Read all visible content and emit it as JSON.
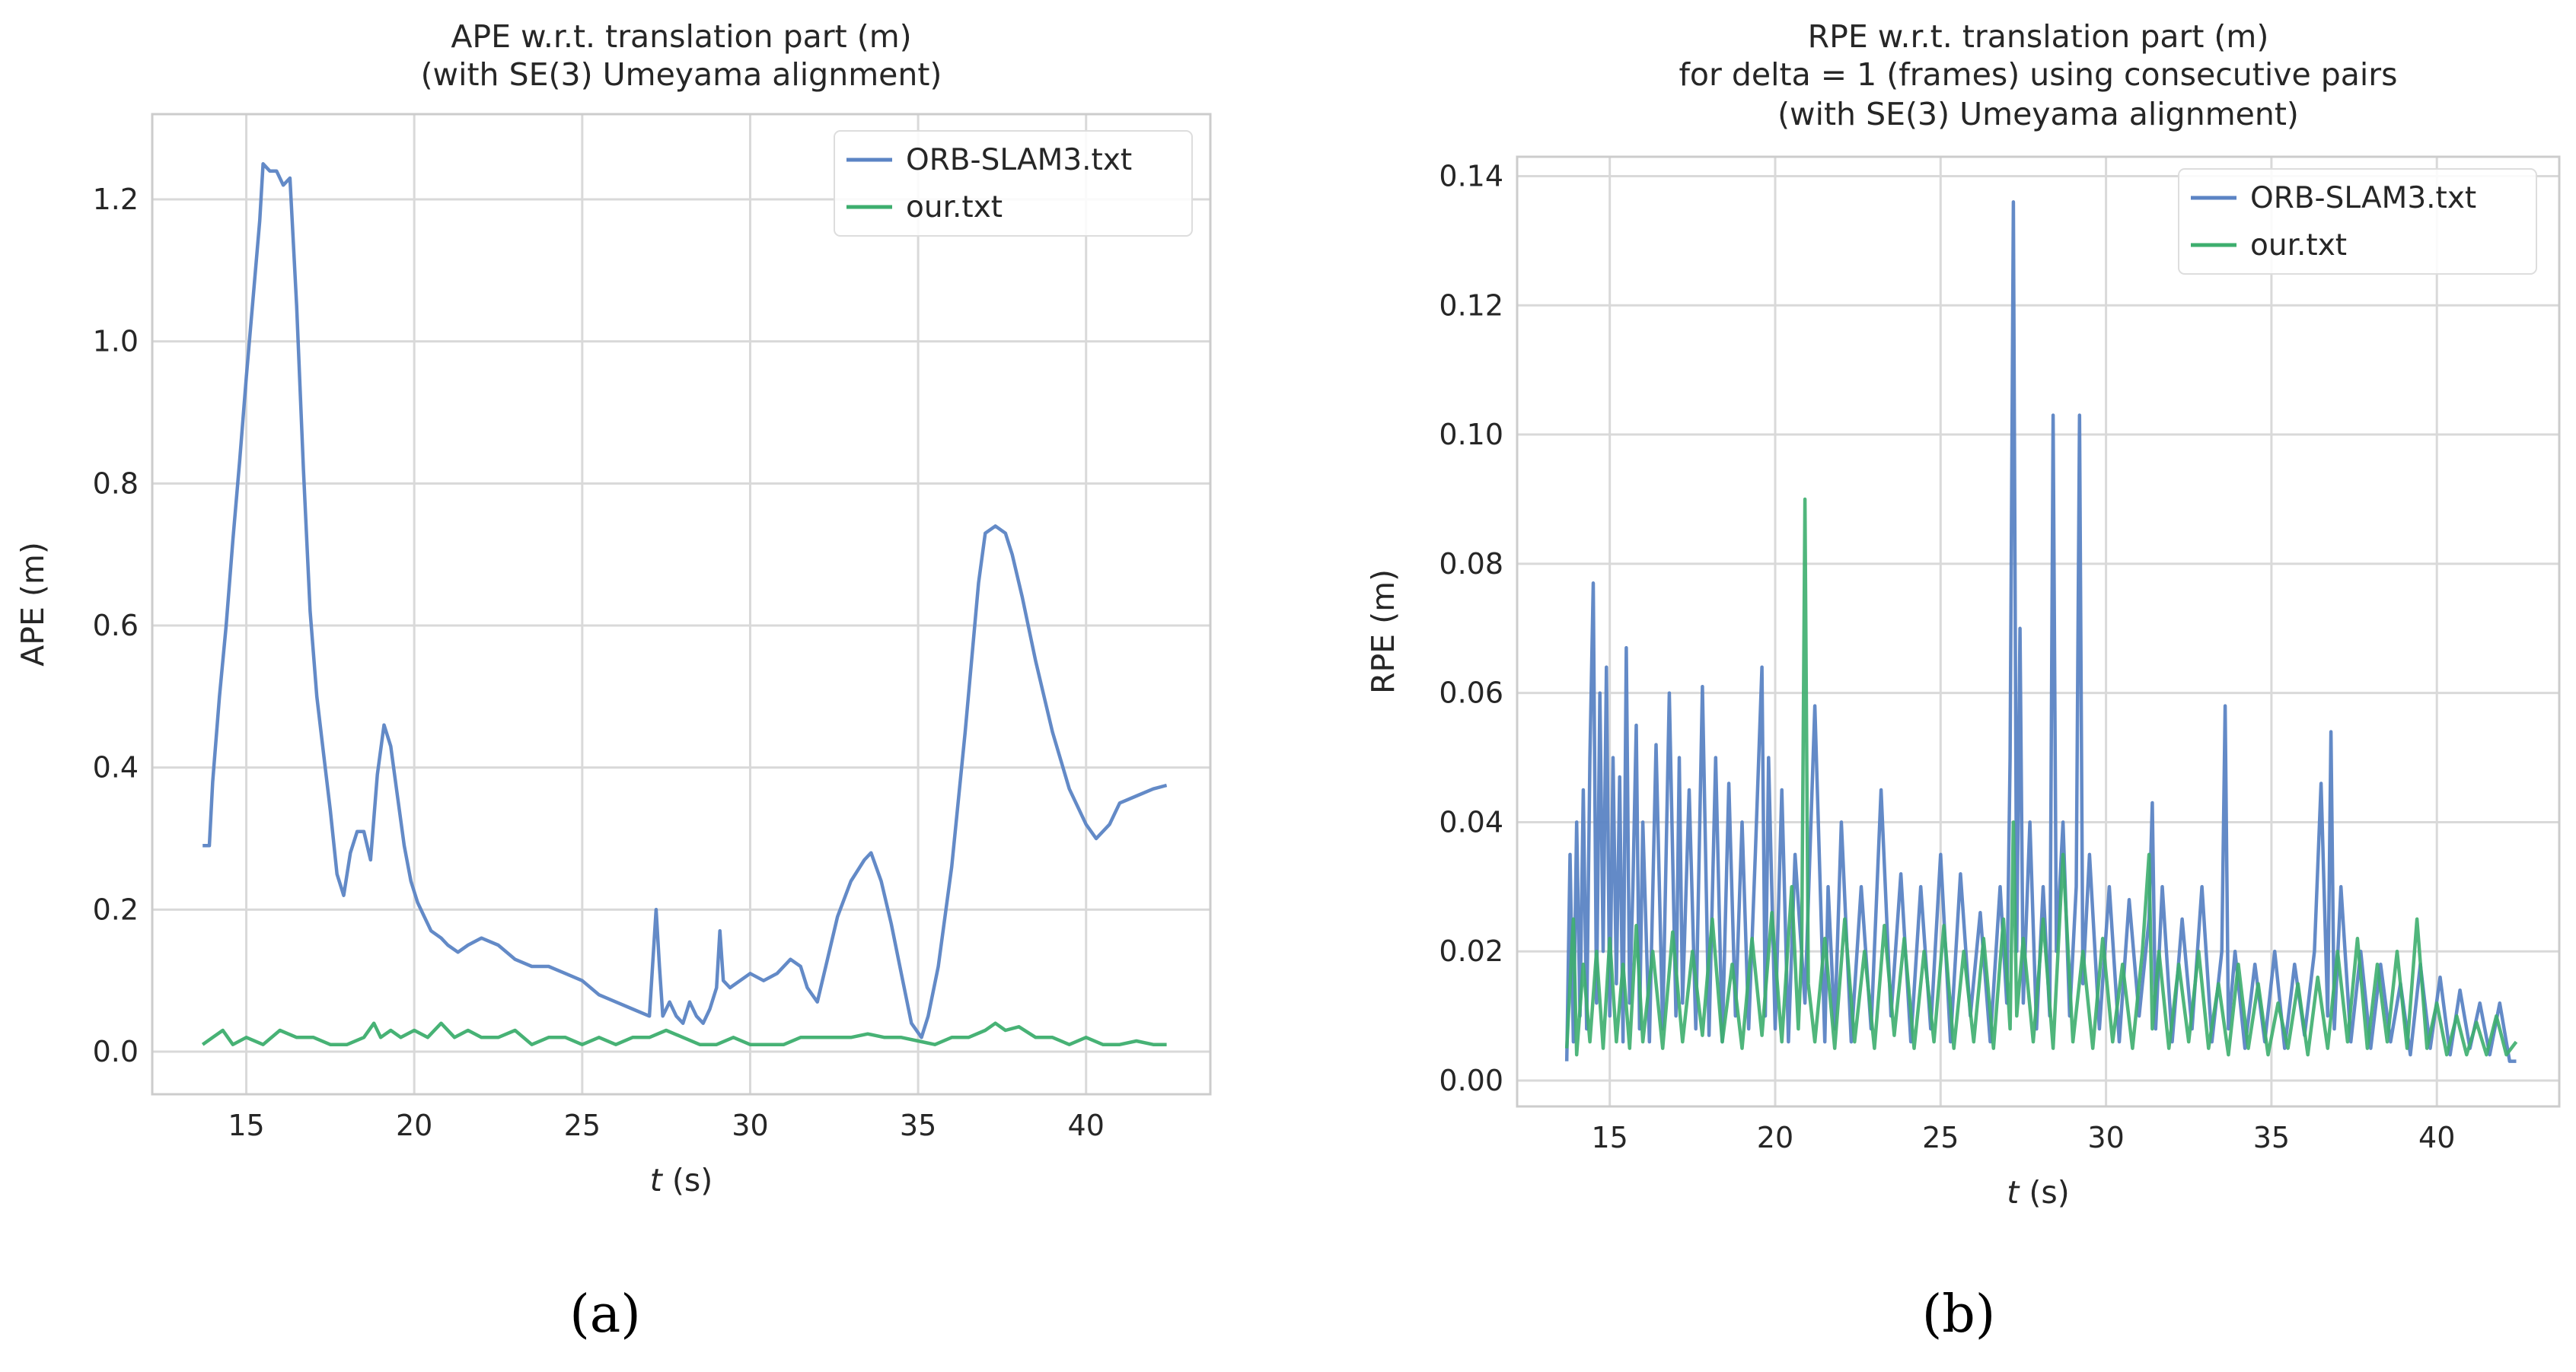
{
  "colors": {
    "orb": "#5b84c4",
    "our": "#3dae6e"
  },
  "chart_data": [
    {
      "type": "line",
      "panel_label": "(a)",
      "title": [
        "APE w.r.t. translation part (m)",
        "(with SE(3) Umeyama alignment)"
      ],
      "xlabel_italic": "t",
      "xlabel_rest": " (s)",
      "ylabel": "APE (m)",
      "xlim": [
        12.2,
        43.7
      ],
      "ylim": [
        -0.06,
        1.32
      ],
      "xticks": [
        15,
        20,
        25,
        30,
        35,
        40
      ],
      "yticks": [
        0.0,
        0.2,
        0.4,
        0.6,
        0.8,
        1.0,
        1.2
      ],
      "ytick_labels": [
        "0.0",
        "0.2",
        "0.4",
        "0.6",
        "0.8",
        "1.0",
        "1.2"
      ],
      "legend": [
        "ORB-SLAM3.txt",
        "our.txt"
      ],
      "series": [
        {
          "name": "ORB-SLAM3.txt",
          "x": [
            13.7,
            13.9,
            14.0,
            14.2,
            14.4,
            14.6,
            14.8,
            15.0,
            15.2,
            15.4,
            15.5,
            15.7,
            15.9,
            16.1,
            16.3,
            16.5,
            16.7,
            16.9,
            17.1,
            17.3,
            17.5,
            17.7,
            17.9,
            18.1,
            18.3,
            18.5,
            18.7,
            18.9,
            19.1,
            19.3,
            19.5,
            19.7,
            19.9,
            20.1,
            20.3,
            20.5,
            20.8,
            21.0,
            21.3,
            21.6,
            22.0,
            22.5,
            23.0,
            23.5,
            24.0,
            24.5,
            25.0,
            25.5,
            26.0,
            26.5,
            27.0,
            27.2,
            27.3,
            27.4,
            27.6,
            27.8,
            28.0,
            28.2,
            28.4,
            28.6,
            28.8,
            29.0,
            29.1,
            29.2,
            29.4,
            29.7,
            30.0,
            30.4,
            30.8,
            31.2,
            31.5,
            31.7,
            32.0,
            32.3,
            32.6,
            33.0,
            33.4,
            33.6,
            33.9,
            34.2,
            34.5,
            34.8,
            35.1,
            35.3,
            35.6,
            36.0,
            36.4,
            36.8,
            37.0,
            37.3,
            37.6,
            37.8,
            38.1,
            38.5,
            39.0,
            39.5,
            40.0,
            40.3,
            40.7,
            41.0,
            41.5,
            42.0,
            42.4
          ],
          "y": [
            0.29,
            0.29,
            0.38,
            0.5,
            0.6,
            0.72,
            0.83,
            0.95,
            1.06,
            1.17,
            1.25,
            1.24,
            1.24,
            1.22,
            1.23,
            1.05,
            0.82,
            0.62,
            0.5,
            0.42,
            0.34,
            0.25,
            0.22,
            0.28,
            0.31,
            0.31,
            0.27,
            0.39,
            0.46,
            0.43,
            0.36,
            0.29,
            0.24,
            0.21,
            0.19,
            0.17,
            0.16,
            0.15,
            0.14,
            0.15,
            0.16,
            0.15,
            0.13,
            0.12,
            0.12,
            0.11,
            0.1,
            0.08,
            0.07,
            0.06,
            0.05,
            0.2,
            0.12,
            0.05,
            0.07,
            0.05,
            0.04,
            0.07,
            0.05,
            0.04,
            0.06,
            0.09,
            0.17,
            0.1,
            0.09,
            0.1,
            0.11,
            0.1,
            0.11,
            0.13,
            0.12,
            0.09,
            0.07,
            0.13,
            0.19,
            0.24,
            0.27,
            0.28,
            0.24,
            0.18,
            0.11,
            0.04,
            0.02,
            0.05,
            0.12,
            0.26,
            0.45,
            0.66,
            0.73,
            0.74,
            0.73,
            0.7,
            0.64,
            0.55,
            0.45,
            0.37,
            0.32,
            0.3,
            0.32,
            0.35,
            0.36,
            0.37,
            0.375
          ]
        },
        {
          "name": "our.txt",
          "x": [
            13.7,
            14.0,
            14.3,
            14.6,
            15.0,
            15.5,
            16.0,
            16.5,
            17.0,
            17.5,
            18.0,
            18.5,
            18.8,
            19.0,
            19.3,
            19.6,
            20.0,
            20.4,
            20.8,
            21.2,
            21.6,
            22.0,
            22.5,
            23.0,
            23.5,
            24.0,
            24.5,
            25.0,
            25.5,
            26.0,
            26.5,
            27.0,
            27.5,
            28.0,
            28.5,
            29.0,
            29.5,
            30.0,
            30.5,
            31.0,
            31.5,
            32.0,
            32.5,
            33.0,
            33.5,
            34.0,
            34.5,
            35.0,
            35.5,
            36.0,
            36.5,
            37.0,
            37.3,
            37.6,
            38.0,
            38.5,
            39.0,
            39.5,
            40.0,
            40.5,
            41.0,
            41.5,
            42.0,
            42.4
          ],
          "y": [
            0.01,
            0.02,
            0.03,
            0.01,
            0.02,
            0.01,
            0.03,
            0.02,
            0.02,
            0.01,
            0.01,
            0.02,
            0.04,
            0.02,
            0.03,
            0.02,
            0.03,
            0.02,
            0.04,
            0.02,
            0.03,
            0.02,
            0.02,
            0.03,
            0.01,
            0.02,
            0.02,
            0.01,
            0.02,
            0.01,
            0.02,
            0.02,
            0.03,
            0.02,
            0.01,
            0.01,
            0.02,
            0.01,
            0.01,
            0.01,
            0.02,
            0.02,
            0.02,
            0.02,
            0.025,
            0.02,
            0.02,
            0.015,
            0.01,
            0.02,
            0.02,
            0.03,
            0.04,
            0.03,
            0.035,
            0.02,
            0.02,
            0.01,
            0.02,
            0.01,
            0.01,
            0.015,
            0.01,
            0.01
          ]
        }
      ]
    },
    {
      "type": "line",
      "panel_label": "(b)",
      "title": [
        "RPE w.r.t. translation part (m)",
        "for delta = 1 (frames) using consecutive pairs",
        "(with SE(3) Umeyama alignment)"
      ],
      "xlabel_italic": "t",
      "xlabel_rest": " (s)",
      "ylabel": "RPE (m)",
      "xlim": [
        12.2,
        43.7
      ],
      "ylim": [
        -0.004,
        0.143
      ],
      "xticks": [
        15,
        20,
        25,
        30,
        35,
        40
      ],
      "yticks": [
        0.0,
        0.02,
        0.04,
        0.06,
        0.08,
        0.1,
        0.12,
        0.14
      ],
      "ytick_labels": [
        "0.00",
        "0.02",
        "0.04",
        "0.06",
        "0.08",
        "0.10",
        "0.12",
        "0.14"
      ],
      "legend": [
        "ORB-SLAM3.txt",
        "our.txt"
      ],
      "series": [
        {
          "name": "ORB-SLAM3.txt",
          "x": [
            13.7,
            13.8,
            13.9,
            14.0,
            14.1,
            14.2,
            14.3,
            14.4,
            14.5,
            14.6,
            14.7,
            14.8,
            14.9,
            15.0,
            15.1,
            15.2,
            15.3,
            15.4,
            15.5,
            15.6,
            15.7,
            15.8,
            15.9,
            16.0,
            16.2,
            16.4,
            16.6,
            16.8,
            17.0,
            17.1,
            17.2,
            17.4,
            17.6,
            17.8,
            18.0,
            18.2,
            18.4,
            18.6,
            18.8,
            19.0,
            19.2,
            19.4,
            19.6,
            19.7,
            19.8,
            20.0,
            20.2,
            20.4,
            20.6,
            20.9,
            21.2,
            21.5,
            21.6,
            21.8,
            22.0,
            22.3,
            22.6,
            22.9,
            23.2,
            23.5,
            23.8,
            24.1,
            24.4,
            24.7,
            25.0,
            25.3,
            25.6,
            25.9,
            26.2,
            26.5,
            26.8,
            27.0,
            27.1,
            27.2,
            27.3,
            27.4,
            27.5,
            27.7,
            27.9,
            28.1,
            28.3,
            28.4,
            28.5,
            28.7,
            28.9,
            29.1,
            29.2,
            29.3,
            29.5,
            29.8,
            30.1,
            30.4,
            30.7,
            31.0,
            31.3,
            31.4,
            31.5,
            31.7,
            32.0,
            32.3,
            32.6,
            32.9,
            33.2,
            33.5,
            33.6,
            33.7,
            33.9,
            34.2,
            34.5,
            34.8,
            35.1,
            35.4,
            35.7,
            36.0,
            36.3,
            36.5,
            36.7,
            36.8,
            36.9,
            37.1,
            37.4,
            37.7,
            38.0,
            38.3,
            38.6,
            38.9,
            39.2,
            39.5,
            39.8,
            40.1,
            40.4,
            40.7,
            41.0,
            41.3,
            41.6,
            41.9,
            42.2,
            42.4
          ],
          "y": [
            0.003,
            0.035,
            0.006,
            0.04,
            0.01,
            0.045,
            0.008,
            0.05,
            0.077,
            0.012,
            0.06,
            0.02,
            0.064,
            0.01,
            0.05,
            0.015,
            0.047,
            0.006,
            0.067,
            0.012,
            0.03,
            0.055,
            0.008,
            0.04,
            0.006,
            0.052,
            0.008,
            0.06,
            0.01,
            0.05,
            0.012,
            0.045,
            0.008,
            0.061,
            0.007,
            0.05,
            0.006,
            0.046,
            0.01,
            0.04,
            0.008,
            0.035,
            0.064,
            0.01,
            0.05,
            0.008,
            0.045,
            0.006,
            0.035,
            0.012,
            0.058,
            0.006,
            0.03,
            0.008,
            0.04,
            0.006,
            0.03,
            0.008,
            0.045,
            0.01,
            0.032,
            0.006,
            0.03,
            0.008,
            0.035,
            0.006,
            0.032,
            0.01,
            0.026,
            0.006,
            0.03,
            0.012,
            0.05,
            0.136,
            0.02,
            0.07,
            0.012,
            0.04,
            0.008,
            0.03,
            0.01,
            0.103,
            0.02,
            0.04,
            0.01,
            0.03,
            0.103,
            0.015,
            0.035,
            0.008,
            0.03,
            0.006,
            0.028,
            0.01,
            0.025,
            0.043,
            0.008,
            0.03,
            0.006,
            0.025,
            0.008,
            0.03,
            0.006,
            0.02,
            0.058,
            0.008,
            0.02,
            0.005,
            0.018,
            0.006,
            0.02,
            0.005,
            0.018,
            0.007,
            0.02,
            0.046,
            0.01,
            0.054,
            0.008,
            0.03,
            0.006,
            0.02,
            0.005,
            0.018,
            0.006,
            0.015,
            0.004,
            0.018,
            0.005,
            0.016,
            0.004,
            0.014,
            0.005,
            0.012,
            0.004,
            0.012,
            0.003,
            0.003
          ]
        },
        {
          "name": "our.txt",
          "x": [
            13.7,
            13.9,
            14.0,
            14.2,
            14.4,
            14.6,
            14.8,
            15.0,
            15.2,
            15.4,
            15.6,
            15.8,
            16.0,
            16.3,
            16.6,
            16.9,
            17.2,
            17.5,
            17.8,
            18.1,
            18.4,
            18.7,
            19.0,
            19.3,
            19.6,
            19.9,
            20.2,
            20.5,
            20.7,
            20.8,
            20.9,
            21.0,
            21.2,
            21.5,
            21.8,
            22.1,
            22.4,
            22.7,
            23.0,
            23.3,
            23.6,
            23.9,
            24.2,
            24.5,
            24.8,
            25.1,
            25.4,
            25.7,
            26.0,
            26.3,
            26.6,
            26.9,
            27.1,
            27.2,
            27.3,
            27.5,
            27.8,
            28.1,
            28.4,
            28.7,
            29.0,
            29.3,
            29.6,
            29.9,
            30.2,
            30.5,
            30.8,
            31.1,
            31.3,
            31.4,
            31.6,
            31.9,
            32.2,
            32.5,
            32.8,
            33.1,
            33.4,
            33.7,
            34.0,
            34.3,
            34.6,
            34.9,
            35.2,
            35.5,
            35.8,
            36.1,
            36.4,
            36.7,
            37.0,
            37.3,
            37.6,
            37.9,
            38.2,
            38.5,
            38.8,
            39.1,
            39.4,
            39.7,
            40.0,
            40.3,
            40.6,
            40.9,
            41.2,
            41.5,
            41.8,
            42.1,
            42.4
          ],
          "y": [
            0.005,
            0.025,
            0.004,
            0.018,
            0.006,
            0.02,
            0.005,
            0.022,
            0.006,
            0.018,
            0.005,
            0.024,
            0.006,
            0.02,
            0.005,
            0.023,
            0.006,
            0.02,
            0.007,
            0.025,
            0.006,
            0.018,
            0.005,
            0.022,
            0.007,
            0.026,
            0.006,
            0.03,
            0.008,
            0.02,
            0.09,
            0.015,
            0.006,
            0.022,
            0.005,
            0.025,
            0.006,
            0.02,
            0.005,
            0.024,
            0.007,
            0.022,
            0.005,
            0.02,
            0.006,
            0.024,
            0.005,
            0.02,
            0.006,
            0.022,
            0.005,
            0.025,
            0.008,
            0.04,
            0.01,
            0.022,
            0.006,
            0.025,
            0.005,
            0.035,
            0.006,
            0.02,
            0.005,
            0.022,
            0.006,
            0.018,
            0.005,
            0.02,
            0.035,
            0.008,
            0.02,
            0.005,
            0.018,
            0.006,
            0.02,
            0.005,
            0.015,
            0.004,
            0.018,
            0.005,
            0.015,
            0.004,
            0.012,
            0.005,
            0.015,
            0.004,
            0.016,
            0.005,
            0.02,
            0.006,
            0.022,
            0.005,
            0.018,
            0.006,
            0.02,
            0.005,
            0.025,
            0.005,
            0.012,
            0.004,
            0.01,
            0.004,
            0.009,
            0.004,
            0.01,
            0.004,
            0.006
          ]
        }
      ]
    }
  ]
}
